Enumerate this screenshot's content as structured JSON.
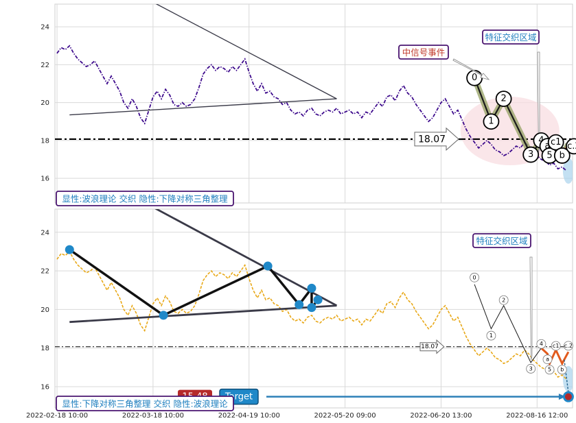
{
  "chart_data": [
    {
      "type": "line",
      "panel": "top",
      "ylim": [
        14.7,
        25.2
      ],
      "yticks": [
        16,
        18,
        20,
        22,
        24
      ],
      "grid": true,
      "reference_line": {
        "value": 18.07,
        "label": "18.07",
        "style": "dash-dot"
      },
      "series": [
        {
          "name": "",
          "color": "#3d0a8c",
          "style": "dash-dot",
          "x": [
            0,
            2,
            4,
            6,
            8,
            10,
            12,
            14,
            16,
            18,
            20,
            22,
            24,
            26,
            28,
            30,
            32,
            34,
            36,
            38,
            40,
            42,
            44,
            46,
            48,
            50,
            52,
            54,
            56,
            58,
            60,
            62,
            64,
            66,
            68,
            70,
            72,
            74,
            76,
            78,
            80,
            82,
            84,
            86,
            88,
            90,
            92,
            94,
            96,
            98,
            100,
            102,
            104,
            106,
            108,
            110,
            112,
            114,
            116,
            118,
            120,
            122,
            124,
            126,
            128,
            130,
            132,
            134,
            136,
            138,
            140,
            142,
            144,
            146,
            148,
            150,
            152,
            154,
            156,
            158,
            160,
            162,
            164,
            166,
            168,
            170,
            172,
            174,
            176,
            178,
            180,
            182,
            184,
            186,
            188,
            190,
            192,
            194,
            196,
            198,
            200,
            202,
            204,
            206,
            208,
            210,
            212,
            214,
            216,
            218,
            220,
            222,
            224,
            226,
            228,
            230,
            232,
            234,
            236,
            238,
            240,
            242,
            244
          ],
          "y": [
            22.6,
            22.9,
            22.8,
            23.0,
            22.6,
            22.3,
            22.1,
            21.9,
            22.0,
            22.2,
            21.8,
            21.4,
            21.0,
            21.4,
            21.0,
            20.6,
            20.0,
            19.7,
            20.2,
            19.8,
            19.2,
            18.9,
            19.6,
            20.3,
            20.6,
            20.2,
            20.7,
            20.4,
            19.9,
            19.8,
            20.0,
            19.8,
            19.9,
            20.2,
            20.8,
            21.5,
            21.8,
            22.0,
            21.7,
            21.9,
            21.8,
            21.6,
            21.9,
            21.7,
            22.0,
            22.3,
            21.6,
            21.0,
            20.6,
            21.0,
            20.5,
            20.6,
            20.3,
            20.2,
            19.9,
            20.0,
            19.6,
            19.4,
            19.5,
            19.3,
            19.6,
            19.7,
            19.4,
            19.3,
            19.5,
            19.6,
            19.5,
            19.7,
            19.4,
            19.5,
            19.6,
            19.4,
            19.5,
            19.2,
            19.5,
            19.4,
            19.7,
            20.0,
            19.8,
            20.3,
            20.4,
            20.1,
            20.6,
            20.9,
            20.5,
            20.3,
            19.9,
            19.6,
            19.3,
            19.0,
            19.2,
            19.6,
            20.0,
            20.2,
            19.8,
            19.4,
            19.6,
            19.1,
            18.6,
            18.2,
            17.9,
            17.6,
            17.8,
            18.0,
            17.8,
            17.5,
            17.4,
            17.2,
            17.3,
            17.5,
            17.7,
            17.6,
            17.9,
            17.7,
            17.4,
            17.2,
            17.0,
            16.9,
            16.7,
            16.8,
            16.5,
            16.6,
            16.4
          ]
        }
      ],
      "overlay_lines": [
        {
          "x": [
            6,
            134
          ],
          "y": [
            19.35,
            20.2
          ]
        },
        {
          "x": [
            46,
            134
          ],
          "y": [
            25.3,
            20.2
          ]
        }
      ],
      "wave_points": [
        {
          "label": "0",
          "x": 200,
          "y": 21.3
        },
        {
          "label": "1",
          "x": 208,
          "y": 19.0
        },
        {
          "label": "2",
          "x": 214,
          "y": 20.2
        },
        {
          "label": "3",
          "x": 227,
          "y": 17.25
        },
        {
          "label": "4",
          "x": 232,
          "y": 18.0
        },
        {
          "label": "a",
          "x": 235,
          "y": 17.7
        },
        {
          "label": "5",
          "x": 236,
          "y": 17.2
        },
        {
          "label": "c1",
          "x": 239,
          "y": 17.9
        },
        {
          "label": "b",
          "x": 242,
          "y": 17.2
        },
        {
          "label": "c2",
          "x": 245,
          "y": 17.8
        }
      ],
      "annotations": {
        "signal_event": "中信号事件",
        "feature_zone": "特征交织区域",
        "footer_tag": "显性:波浪理论 交织 隐性:下降对称三角整理"
      }
    },
    {
      "type": "line",
      "panel": "bottom",
      "ylim": [
        14.9,
        25.2
      ],
      "yticks": [
        16,
        18,
        20,
        22,
        24
      ],
      "grid": true,
      "reference_line": {
        "value": 18.07,
        "label": "18.07",
        "style": "dash-dot"
      },
      "series": [
        {
          "name": "",
          "color": "#e8a817",
          "style": "dashed",
          "x": [
            0,
            2,
            4,
            6,
            8,
            10,
            12,
            14,
            16,
            18,
            20,
            22,
            24,
            26,
            28,
            30,
            32,
            34,
            36,
            38,
            40,
            42,
            44,
            46,
            48,
            50,
            52,
            54,
            56,
            58,
            60,
            62,
            64,
            66,
            68,
            70,
            72,
            74,
            76,
            78,
            80,
            82,
            84,
            86,
            88,
            90,
            92,
            94,
            96,
            98,
            100,
            102,
            104,
            106,
            108,
            110,
            112,
            114,
            116,
            118,
            120,
            122,
            124,
            126,
            128,
            130,
            132,
            134,
            136,
            138,
            140,
            142,
            144,
            146,
            148,
            150,
            152,
            154,
            156,
            158,
            160,
            162,
            164,
            166,
            168,
            170,
            172,
            174,
            176,
            178,
            180,
            182,
            184,
            186,
            188,
            190,
            192,
            194,
            196,
            198,
            200,
            202,
            204,
            206,
            208,
            210,
            212,
            214,
            216,
            218,
            220,
            222,
            224,
            226,
            228,
            230,
            232,
            234,
            236,
            238,
            240,
            242,
            244
          ],
          "y": [
            22.6,
            22.9,
            22.8,
            23.0,
            22.6,
            22.3,
            22.1,
            21.9,
            22.0,
            22.2,
            21.8,
            21.4,
            21.0,
            21.4,
            21.0,
            20.6,
            20.0,
            19.7,
            20.2,
            19.8,
            19.2,
            18.9,
            19.6,
            20.3,
            20.6,
            20.2,
            20.7,
            20.4,
            19.9,
            19.8,
            20.0,
            19.8,
            19.9,
            20.2,
            20.8,
            21.5,
            21.8,
            22.0,
            21.7,
            21.9,
            21.8,
            21.6,
            21.9,
            21.7,
            22.0,
            22.3,
            21.6,
            21.0,
            20.6,
            21.0,
            20.5,
            20.6,
            20.3,
            20.2,
            19.9,
            20.0,
            19.6,
            19.4,
            19.5,
            19.3,
            19.6,
            19.7,
            19.4,
            19.3,
            19.5,
            19.6,
            19.5,
            19.7,
            19.4,
            19.5,
            19.6,
            19.4,
            19.5,
            19.2,
            19.5,
            19.4,
            19.7,
            20.0,
            19.8,
            20.3,
            20.4,
            20.1,
            20.6,
            20.9,
            20.5,
            20.3,
            19.9,
            19.6,
            19.3,
            19.0,
            19.2,
            19.6,
            20.0,
            20.2,
            19.8,
            19.4,
            19.6,
            19.1,
            18.6,
            18.2,
            17.9,
            17.6,
            17.8,
            18.0,
            17.8,
            17.5,
            17.4,
            17.2,
            17.3,
            17.5,
            17.7,
            17.6,
            17.9,
            17.7,
            17.4,
            17.2,
            17.0,
            16.9,
            16.7,
            16.8,
            16.5,
            16.6,
            16.4
          ]
        }
      ],
      "overlay_lines": [
        {
          "x": [
            6,
            134
          ],
          "y": [
            19.35,
            20.2
          ]
        },
        {
          "x": [
            46,
            134
          ],
          "y": [
            25.3,
            20.2
          ]
        }
      ],
      "zigzag_points": [
        {
          "x": 6,
          "y": 23.1
        },
        {
          "x": 51,
          "y": 19.7
        },
        {
          "x": 101,
          "y": 22.25
        },
        {
          "x": 116,
          "y": 20.25
        },
        {
          "x": 122,
          "y": 21.1
        },
        {
          "x": 122,
          "y": 20.1
        },
        {
          "x": 125,
          "y": 20.5
        }
      ],
      "wave_points": [
        {
          "label": "0",
          "x": 200,
          "y": 21.3
        },
        {
          "label": "1",
          "x": 208,
          "y": 19.0
        },
        {
          "label": "2",
          "x": 214,
          "y": 20.2
        },
        {
          "label": "3",
          "x": 227,
          "y": 17.25
        },
        {
          "label": "4",
          "x": 232,
          "y": 18.0
        },
        {
          "label": "a",
          "x": 235,
          "y": 17.7
        },
        {
          "label": "5",
          "x": 236,
          "y": 17.2
        },
        {
          "label": "c1",
          "x": 239,
          "y": 17.9
        },
        {
          "label": "b",
          "x": 242,
          "y": 17.2
        },
        {
          "label": "c2",
          "x": 245,
          "y": 17.8
        }
      ],
      "target": {
        "value": 15.48,
        "label": "15.48",
        "tag": "Target"
      },
      "annotations": {
        "feature_zone": "特征交织区域",
        "footer_tag": "显性:下降对称三角整理 交织 隐性:波浪理论"
      }
    }
  ],
  "x_axis": {
    "ticks": [
      {
        "x": 0,
        "label": "2022-02-18 10:00"
      },
      {
        "x": 46,
        "label": "2022-03-18 10:00"
      },
      {
        "x": 92,
        "label": "2022-04-19 10:00"
      },
      {
        "x": 138,
        "label": "2022-05-20 09:00"
      },
      {
        "x": 184,
        "label": "2022-06-20 13:00"
      },
      {
        "x": 230,
        "label": "2022-08-16 12:00"
      }
    ],
    "range": [
      -1,
      247
    ]
  },
  "colors": {
    "wave_line": "#1a1a1a",
    "wave_fill": "#9aa56a",
    "pivot_blue": "#1f88c8",
    "target_red": "#b52a2a",
    "tag_border": "#4a1570",
    "tag_text": "#1f7fbf",
    "red_text": "#c0392b",
    "pink_zone": "#f8dde2"
  }
}
